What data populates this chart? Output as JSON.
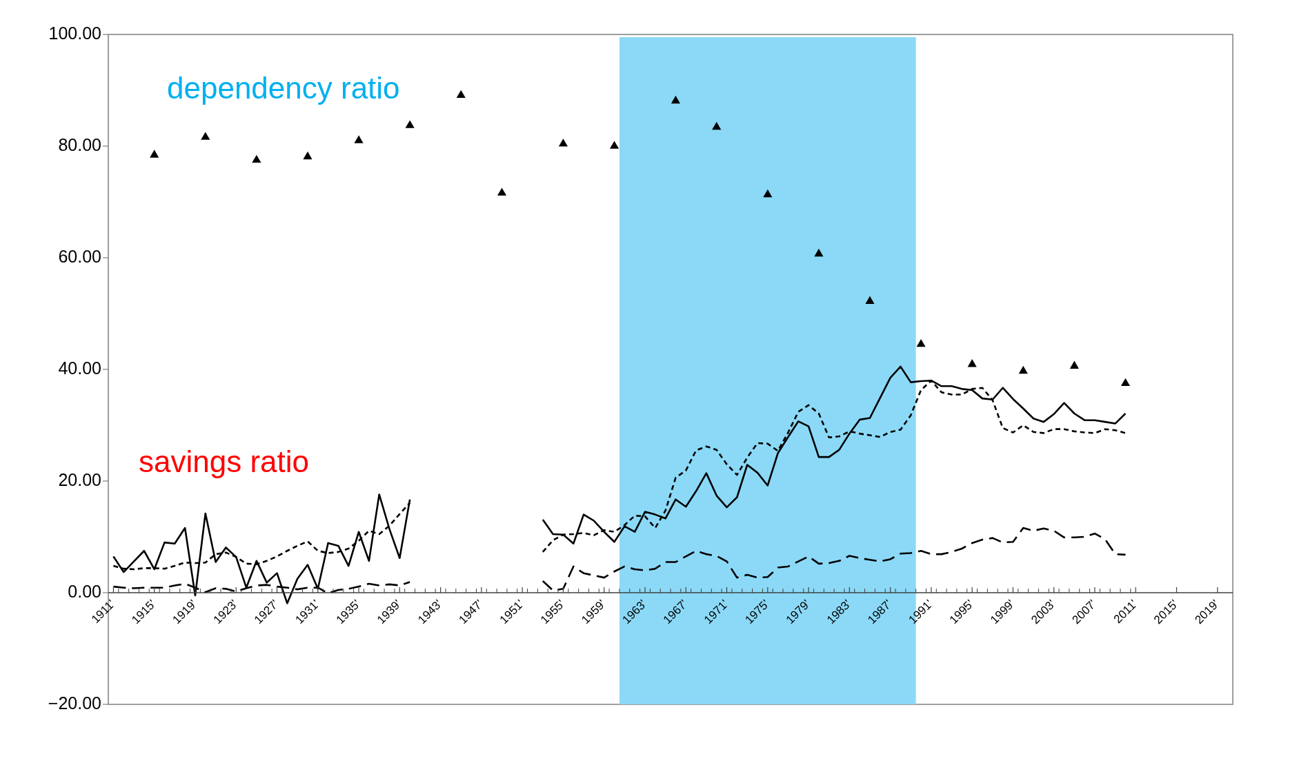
{
  "chart_data": {
    "type": "line",
    "xlim": [
      1910.5,
      2020.5
    ],
    "xticks": [
      {
        "value": 1911,
        "label": "1911'"
      },
      {
        "value": 1915,
        "label": "1915'"
      },
      {
        "value": 1919,
        "label": "1919'"
      },
      {
        "value": 1923,
        "label": "1923'"
      },
      {
        "value": 1927,
        "label": "1927'"
      },
      {
        "value": 1931,
        "label": "1931'"
      },
      {
        "value": 1935,
        "label": "1935'"
      },
      {
        "value": 1939,
        "label": "1939'"
      },
      {
        "value": 1943,
        "label": "1943'"
      },
      {
        "value": 1947,
        "label": "1947'"
      },
      {
        "value": 1951,
        "label": "1951'"
      },
      {
        "value": 1955,
        "label": "1955'"
      },
      {
        "value": 1959,
        "label": "1959'"
      },
      {
        "value": 1963,
        "label": "1963'"
      },
      {
        "value": 1967,
        "label": "1967'"
      },
      {
        "value": 1971,
        "label": "1971'"
      },
      {
        "value": 1975,
        "label": "1975'"
      },
      {
        "value": 1979,
        "label": "1979'"
      },
      {
        "value": 1983,
        "label": "1983'"
      },
      {
        "value": 1987,
        "label": "1987'"
      },
      {
        "value": 1991,
        "label": "1991'"
      },
      {
        "value": 1995,
        "label": "1995'"
      },
      {
        "value": 1999,
        "label": "1999'"
      },
      {
        "value": 2003,
        "label": "2003'"
      },
      {
        "value": 2007,
        "label": "2007'"
      },
      {
        "value": 2011,
        "label": "2011'"
      },
      {
        "value": 2015,
        "label": "2015'"
      },
      {
        "value": 2019,
        "label": "2019'"
      }
    ],
    "ylim": [
      -20,
      100
    ],
    "yticks": [
      {
        "value": -20,
        "label": "−20.00"
      },
      {
        "value": 0,
        "label": "0.00"
      },
      {
        "value": 20,
        "label": "20.00"
      },
      {
        "value": 40,
        "label": "40.00"
      },
      {
        "value": 60,
        "label": "60.00"
      },
      {
        "value": 80,
        "label": "80.00"
      },
      {
        "value": 100,
        "label": "100.00"
      }
    ],
    "x": [
      1911,
      1912,
      1913,
      1914,
      1915,
      1916,
      1917,
      1918,
      1919,
      1920,
      1921,
      1922,
      1923,
      1924,
      1925,
      1926,
      1927,
      1928,
      1929,
      1930,
      1931,
      1932,
      1933,
      1934,
      1935,
      1936,
      1937,
      1938,
      1939,
      1940,
      1941,
      1942,
      1943,
      1944,
      1945,
      1946,
      1947,
      1948,
      1949,
      1950,
      1951,
      1952,
      1953,
      1954,
      1955,
      1956,
      1957,
      1958,
      1959,
      1960,
      1961,
      1962,
      1963,
      1964,
      1965,
      1966,
      1967,
      1968,
      1969,
      1970,
      1971,
      1972,
      1973,
      1974,
      1975,
      1976,
      1977,
      1978,
      1979,
      1980,
      1981,
      1982,
      1983,
      1984,
      1985,
      1986,
      1987,
      1988,
      1989,
      1990,
      1991,
      1992,
      1993,
      1994,
      1995,
      1996,
      1997,
      1998,
      1999,
      2000,
      2001,
      2002,
      2003,
      2004,
      2005,
      2006,
      2007,
      2008,
      2009,
      2010
    ],
    "series": [
      {
        "type": "scatter",
        "color": "#000000",
        "marker": "triangle",
        "x": [
          1915,
          1920,
          1925,
          1930,
          1935,
          1940,
          1945,
          1949,
          1955,
          1960,
          1966,
          1970,
          1975,
          1980,
          1985,
          1990,
          1995,
          2000,
          2005,
          2010
        ],
        "values": [
          78.4,
          81.6,
          77.5,
          78.1,
          81.0,
          83.7,
          89.1,
          71.6,
          80.4,
          80.0,
          88.1,
          83.4,
          71.3,
          60.7,
          52.2,
          44.5,
          40.9,
          39.7,
          40.6,
          37.5
        ]
      },
      {
        "color": "#000000",
        "line_style": "solid",
        "values": [
          6.5,
          3.7,
          5.6,
          7.5,
          4.2,
          9.0,
          8.8,
          11.6,
          -0.5,
          14.2,
          5.5,
          8.1,
          6.4,
          0.9,
          5.7,
          1.8,
          3.5,
          -1.9,
          2.5,
          5.0,
          0.7,
          8.9,
          8.4,
          4.8,
          10.9,
          5.7,
          17.6,
          11.4,
          6.2,
          16.7,
          null,
          null,
          null,
          null,
          null,
          null,
          null,
          null,
          null,
          null,
          null,
          null,
          13.1,
          10.5,
          10.4,
          8.8,
          14.0,
          12.9,
          10.9,
          9.1,
          11.9,
          10.9,
          14.5,
          14.0,
          13.3,
          16.7,
          15.4,
          18.2,
          21.4,
          17.4,
          15.3,
          17.1,
          22.9,
          21.5,
          19.2,
          25.0,
          27.9,
          30.7,
          29.8,
          24.3,
          24.3,
          25.6,
          28.5,
          31.0,
          31.3,
          34.9,
          38.5,
          40.5,
          37.7,
          37.9,
          38.0,
          37.0,
          37.0,
          36.5,
          36.3,
          34.8,
          34.6,
          36.7,
          34.7,
          33.0,
          31.2,
          30.6,
          32.0,
          34.0,
          32.1,
          30.9,
          30.9,
          30.6,
          30.3,
          32.1
        ]
      },
      {
        "color": "#000000",
        "line_style": "dotted",
        "values": [
          4.8,
          4.3,
          4.2,
          4.4,
          4.4,
          4.3,
          4.8,
          5.4,
          5.3,
          5.4,
          6.9,
          7.2,
          6.4,
          5.2,
          5.1,
          5.7,
          6.5,
          7.5,
          8.4,
          9.2,
          7.5,
          7.1,
          7.3,
          7.9,
          9.3,
          11.1,
          10.5,
          12.0,
          14.1,
          16.1,
          null,
          null,
          null,
          null,
          null,
          null,
          null,
          null,
          null,
          null,
          null,
          null,
          7.3,
          9.4,
          10.4,
          10.5,
          10.7,
          10.3,
          11.2,
          10.9,
          12.1,
          13.8,
          13.7,
          11.6,
          14.7,
          20.6,
          21.9,
          25.5,
          26.2,
          25.6,
          23.0,
          21.1,
          24.2,
          26.8,
          26.7,
          25.4,
          28.7,
          32.4,
          33.6,
          32.1,
          27.8,
          28.0,
          28.9,
          28.5,
          28.2,
          27.9,
          28.8,
          29.2,
          31.8,
          36.3,
          38.0,
          35.9,
          35.5,
          35.5,
          36.5,
          36.7,
          34.5,
          29.5,
          28.7,
          30.0,
          28.8,
          28.6,
          29.3,
          29.3,
          28.9,
          28.7,
          28.6,
          29.3,
          29.1,
          28.6
        ]
      },
      {
        "color": "#000000",
        "line_style": "dashed",
        "values": [
          1.1,
          0.9,
          0.8,
          0.9,
          0.9,
          0.9,
          1.3,
          1.6,
          0.9,
          0.1,
          0.8,
          0.7,
          0.2,
          0.8,
          1.3,
          1.4,
          1.1,
          0.9,
          0.6,
          0.9,
          0.9,
          -0.1,
          0.5,
          0.7,
          1.1,
          1.6,
          1.3,
          1.5,
          1.3,
          1.9,
          null,
          null,
          null,
          null,
          null,
          null,
          null,
          null,
          null,
          null,
          null,
          null,
          2.1,
          0.4,
          0.7,
          4.7,
          3.5,
          3.1,
          2.7,
          3.8,
          4.7,
          4.2,
          4.0,
          4.3,
          5.5,
          5.5,
          6.5,
          7.5,
          6.9,
          6.6,
          5.6,
          2.7,
          3.2,
          2.7,
          2.8,
          4.5,
          4.7,
          5.6,
          6.5,
          5.2,
          5.3,
          5.7,
          6.6,
          6.2,
          5.9,
          5.6,
          6.0,
          7.0,
          7.1,
          7.5,
          6.9,
          6.9,
          7.3,
          7.9,
          8.9,
          9.5,
          9.8,
          9.0,
          9.1,
          11.6,
          11.1,
          11.5,
          11.1,
          9.9,
          9.9,
          10.0,
          10.6,
          9.6,
          6.9,
          6.8
        ]
      }
    ],
    "bands": [
      {
        "axis": "x",
        "from": 1960.5,
        "to": 1989.5,
        "color": "#8bd9f7"
      }
    ],
    "annotations": [
      "dependency ratio",
      "savings ratio"
    ]
  }
}
